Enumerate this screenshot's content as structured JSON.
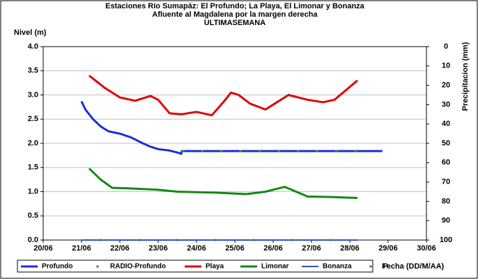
{
  "chart_data": {
    "type": "line",
    "title": [
      "Estaciones Río Sumapáz: El Profundo; La Playa, El Limonar y Bonanza",
      "Afluente al Magdalena por la margen derecha",
      "ULTIMASEMANA"
    ],
    "ylabel": "Nivel (m)",
    "y2label": "Precipitacion (mm)",
    "xlabel": "Fecha (DD/M/AA)",
    "xlim": [
      20,
      30
    ],
    "xticks": [
      {
        "value": 20,
        "label": "20/06"
      },
      {
        "value": 21,
        "label": "21/06"
      },
      {
        "value": 22,
        "label": "22/06"
      },
      {
        "value": 23,
        "label": "23/06"
      },
      {
        "value": 24,
        "label": "24/06"
      },
      {
        "value": 25,
        "label": "25/06"
      },
      {
        "value": 26,
        "label": "26/06"
      },
      {
        "value": 27,
        "label": "27/06"
      },
      {
        "value": 28,
        "label": "28/06"
      },
      {
        "value": 29,
        "label": "29/06"
      },
      {
        "value": 30,
        "label": "30/06"
      }
    ],
    "ylim": [
      0,
      4
    ],
    "yticks": [
      {
        "value": 0,
        "label": "0.0"
      },
      {
        "value": 0.5,
        "label": "0.5"
      },
      {
        "value": 1,
        "label": "1.0"
      },
      {
        "value": 1.5,
        "label": "1.5"
      },
      {
        "value": 2,
        "label": "2.0"
      },
      {
        "value": 2.5,
        "label": "2.5"
      },
      {
        "value": 3,
        "label": "3.0"
      },
      {
        "value": 3.5,
        "label": "3.5"
      },
      {
        "value": 4,
        "label": "4.0"
      }
    ],
    "y2lim": [
      100,
      0
    ],
    "y2ticks": [
      0,
      10,
      20,
      30,
      40,
      50,
      60,
      70,
      80,
      90,
      100
    ],
    "series": [
      {
        "name": "Profundo",
        "color": "#1a2fd8",
        "mode": "line",
        "width": 3,
        "x": [
          21.0,
          21.1,
          21.3,
          21.5,
          21.7,
          22.0,
          22.3,
          22.6,
          22.8,
          23.0,
          23.3,
          23.55,
          23.6,
          23.62,
          28.85
        ],
        "values": [
          2.87,
          2.7,
          2.5,
          2.35,
          2.25,
          2.2,
          2.12,
          2.0,
          1.93,
          1.88,
          1.85,
          1.8,
          1.78,
          1.84,
          1.84
        ]
      },
      {
        "name": "RADIO-Profundo",
        "color": "#2a9a2a",
        "mode": "markers",
        "x": [
          23.65,
          24.15,
          24.65,
          25.15,
          25.65,
          26.15,
          26.65,
          27.15,
          27.65,
          28.15
        ],
        "values": [
          1.84,
          1.84,
          1.84,
          1.84,
          1.84,
          1.84,
          1.84,
          1.84,
          1.84,
          1.84
        ]
      },
      {
        "name": "Playa",
        "color": "#e00000",
        "mode": "line",
        "width": 3,
        "x": [
          21.2,
          21.6,
          22.0,
          22.4,
          22.8,
          23.0,
          23.3,
          23.6,
          24.0,
          24.4,
          24.7,
          24.9,
          25.1,
          25.4,
          25.8,
          26.1,
          26.4,
          26.9,
          27.3,
          27.6,
          27.9,
          28.2
        ],
        "values": [
          3.4,
          3.15,
          2.95,
          2.88,
          2.98,
          2.9,
          2.62,
          2.6,
          2.65,
          2.58,
          2.85,
          3.05,
          3.0,
          2.82,
          2.7,
          2.85,
          3.0,
          2.9,
          2.85,
          2.9,
          3.1,
          3.3
        ]
      },
      {
        "name": "Limonar",
        "color": "#108a10",
        "mode": "line",
        "width": 3,
        "x": [
          21.2,
          21.5,
          21.8,
          22.2,
          23.0,
          23.5,
          24.5,
          25.3,
          25.8,
          26.3,
          26.6,
          26.9,
          27.5,
          28.2
        ],
        "values": [
          1.48,
          1.25,
          1.08,
          1.07,
          1.04,
          1.0,
          0.98,
          0.95,
          1.0,
          1.1,
          1.0,
          0.9,
          0.89,
          0.87
        ]
      },
      {
        "name": "Bonanza",
        "color": "#3050c8",
        "mode": "line",
        "width": 2,
        "x": [
          21.0,
          28.2
        ],
        "values": [
          0,
          0
        ]
      },
      {
        "name": "P",
        "color": "#2a9a2a",
        "mode": "markers",
        "axis": "y2",
        "x": [
          21.5,
          22.5,
          23.5,
          24.5,
          25.5,
          26.5,
          27.5
        ],
        "values": [
          100,
          100,
          100,
          100,
          100,
          100,
          100
        ]
      }
    ]
  }
}
